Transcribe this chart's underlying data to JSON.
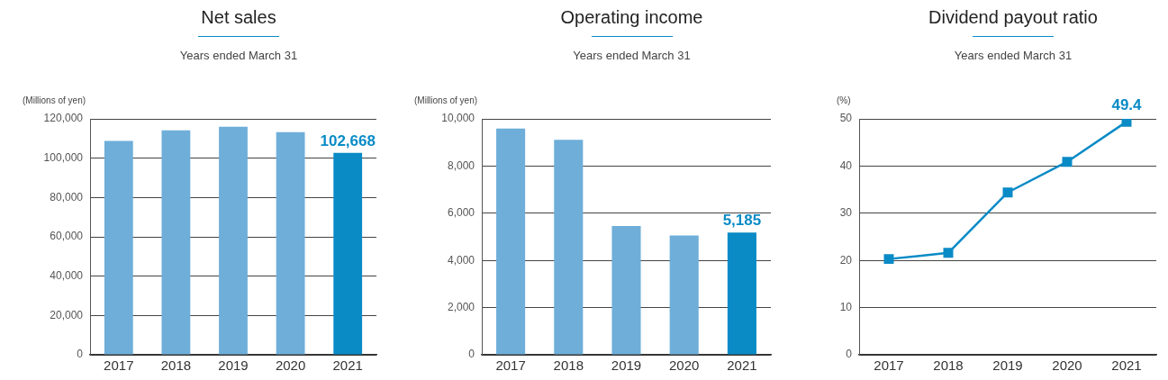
{
  "chart_data": [
    {
      "type": "bar",
      "title": "Net sales",
      "subtitle": "Years ended March 31",
      "ylabel": "(Millions of yen)",
      "categories": [
        "2017",
        "2018",
        "2019",
        "2020",
        "2021"
      ],
      "values": [
        108800,
        114200,
        116000,
        113300,
        102668
      ],
      "colors": [
        "#6eaed9",
        "#6eaed9",
        "#6eaed9",
        "#6eaed9",
        "#0a8bc6"
      ],
      "value_labels": [
        null,
        null,
        null,
        null,
        "102,668"
      ],
      "ylim": [
        0,
        120000
      ],
      "yticks": [
        {
          "value": 0,
          "label": "0"
        },
        {
          "value": 20000,
          "label": "20,000"
        },
        {
          "value": 40000,
          "label": "40,000"
        },
        {
          "value": 60000,
          "label": "60,000"
        },
        {
          "value": 80000,
          "label": "80,000"
        },
        {
          "value": 100000,
          "label": "100,000"
        },
        {
          "value": 120000,
          "label": "120,000"
        }
      ],
      "grid": "y"
    },
    {
      "type": "bar",
      "title": "Operating income",
      "subtitle": "Years ended March 31",
      "ylabel": "(Millions of yen)",
      "categories": [
        "2017",
        "2018",
        "2019",
        "2020",
        "2021"
      ],
      "values": [
        9590,
        9110,
        5460,
        5060,
        5185
      ],
      "colors": [
        "#6eaed9",
        "#6eaed9",
        "#6eaed9",
        "#6eaed9",
        "#0a8bc6"
      ],
      "value_labels": [
        null,
        null,
        null,
        null,
        "5,185"
      ],
      "ylim": [
        0,
        10000
      ],
      "yticks": [
        {
          "value": 0,
          "label": "0"
        },
        {
          "value": 2000,
          "label": "2,000"
        },
        {
          "value": 4000,
          "label": "4,000"
        },
        {
          "value": 6000,
          "label": "6,000"
        },
        {
          "value": 8000,
          "label": "8,000"
        },
        {
          "value": 10000,
          "label": "10,000"
        }
      ],
      "grid": "y"
    },
    {
      "type": "line",
      "title": "Dividend payout ratio",
      "subtitle": "Years ended March 31",
      "ylabel": "(%)",
      "categories": [
        "2017",
        "2018",
        "2019",
        "2020",
        "2021"
      ],
      "values": [
        20.3,
        21.6,
        34.4,
        40.9,
        49.4
      ],
      "color": "#0a8bc6",
      "marker": "square",
      "value_labels": [
        null,
        null,
        null,
        null,
        "49.4"
      ],
      "ylim": [
        0,
        50
      ],
      "yticks": [
        0,
        10,
        20,
        30,
        40,
        50
      ],
      "grid": "y"
    }
  ]
}
